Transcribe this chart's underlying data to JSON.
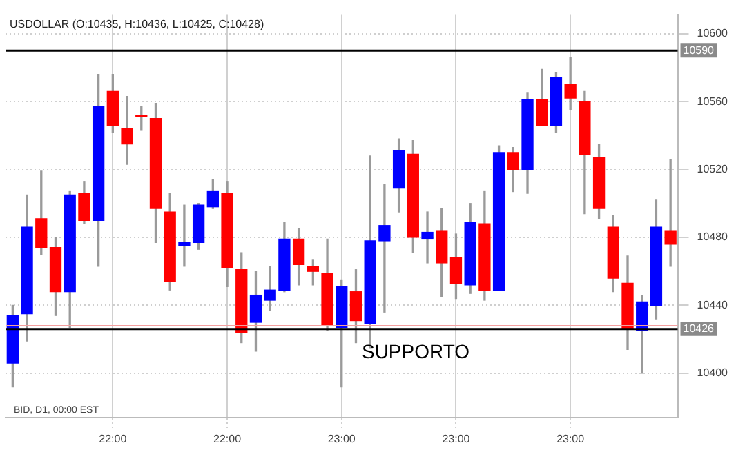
{
  "chart_data": {
    "type": "candlestick",
    "title": "USDOLLAR (O:10435, H:10436, L:10425, C:10428)",
    "annotations": [
      "BID, D1, 00:00 EST",
      {
        "text": "SUPPORTO",
        "y": 10426
      }
    ],
    "categories": [
      null,
      null,
      null,
      null,
      null,
      null,
      null,
      "22:00",
      null,
      null,
      null,
      null,
      null,
      null,
      null,
      "22:00",
      null,
      null,
      null,
      null,
      null,
      null,
      null,
      "23:00",
      null,
      null,
      null,
      null,
      null,
      null,
      null,
      "23:00",
      null,
      null,
      null,
      null,
      null,
      null,
      null,
      "23:00",
      null,
      null,
      null,
      null,
      null,
      null,
      null
    ],
    "ohlc": [
      [
        10406,
        10440,
        10392,
        10434
      ],
      [
        10435,
        10505,
        10419,
        10486
      ],
      [
        10491,
        10519,
        10470,
        10474
      ],
      [
        10474,
        10480,
        10434,
        10448
      ],
      [
        10448,
        10507,
        10427,
        10505
      ],
      [
        10506,
        10513,
        10488,
        10490
      ],
      [
        10490,
        10576,
        10463,
        10557
      ],
      [
        10566,
        10576,
        10542,
        10546
      ],
      [
        10544,
        10563,
        10523,
        10535
      ],
      [
        10552,
        10557,
        10543,
        10551
      ],
      [
        10550,
        10559,
        10477,
        10497
      ],
      [
        10495,
        10506,
        10449,
        10454
      ],
      [
        10475,
        10499,
        10463,
        10477
      ],
      [
        10477,
        10500,
        10473,
        10499
      ],
      [
        10498,
        10514,
        10497,
        10507
      ],
      [
        10506,
        10513,
        10451,
        10462
      ],
      [
        10461,
        10471,
        10418,
        10424
      ],
      [
        10430,
        10460,
        10413,
        10446
      ],
      [
        10443,
        10463,
        10437,
        10449
      ],
      [
        10449,
        10489,
        10448,
        10479
      ],
      [
        10479,
        10485,
        10452,
        10464
      ],
      [
        10463,
        10467,
        10452,
        10460
      ],
      [
        10459,
        10479,
        10425,
        10428
      ],
      [
        10427,
        10455,
        10392,
        10451
      ],
      [
        10448,
        10461,
        10418,
        10431
      ],
      [
        10429,
        10528,
        10415,
        10478
      ],
      [
        10478,
        10511,
        10436,
        10487
      ],
      [
        10509,
        10538,
        10495,
        10531
      ],
      [
        10529,
        10537,
        10471,
        10480
      ],
      [
        10479,
        10495,
        10465,
        10483
      ],
      [
        10484,
        10497,
        10445,
        10465
      ],
      [
        10468,
        10482,
        10444,
        10453
      ],
      [
        10452,
        10500,
        10447,
        10489
      ],
      [
        10488,
        10507,
        10443,
        10449
      ],
      [
        10449,
        10534,
        10449,
        10530
      ],
      [
        10530,
        10533,
        10507,
        10520
      ],
      [
        10520,
        10565,
        10506,
        10561
      ],
      [
        10561,
        10579,
        10546,
        10546
      ],
      [
        10546,
        10577,
        10542,
        10574
      ],
      [
        10570,
        10586,
        10555,
        10562
      ],
      [
        10560,
        10566,
        10494,
        10529
      ],
      [
        10527,
        10535,
        10491,
        10497
      ],
      [
        10486,
        10493,
        10448,
        10456
      ],
      [
        10453,
        10469,
        10414,
        10426
      ],
      [
        10425,
        10446,
        10400,
        10442
      ],
      [
        10440,
        10502,
        10432,
        10486
      ],
      [
        10484,
        10526,
        10463,
        10476
      ]
    ],
    "colors": [
      "#0000ff",
      "#0000ff",
      "#ff0000",
      "#ff0000",
      "#0000ff",
      "#ff0000",
      "#0000ff",
      "#ff0000",
      "#ff0000",
      "#ff0000",
      "#ff0000",
      "#ff0000",
      "#0000ff",
      "#0000ff",
      "#0000ff",
      "#ff0000",
      "#ff0000",
      "#0000ff",
      "#0000ff",
      "#0000ff",
      "#ff0000",
      "#ff0000",
      "#ff0000",
      "#0000ff",
      "#ff0000",
      "#0000ff",
      "#0000ff",
      "#0000ff",
      "#ff0000",
      "#0000ff",
      "#ff0000",
      "#ff0000",
      "#0000ff",
      "#ff0000",
      "#0000ff",
      "#ff0000",
      "#0000ff",
      "#ff0000",
      "#0000ff",
      "#ff0000",
      "#ff0000",
      "#ff0000",
      "#ff0000",
      "#ff0000",
      "#0000ff",
      "#0000ff",
      "#ff0000"
    ],
    "ylim": [
      10374,
      10611
    ],
    "yticks": [
      10400,
      10440,
      10480,
      10520,
      10560,
      10600
    ],
    "ref_lines": [
      {
        "axis": "y",
        "value": 10590,
        "label": "10590",
        "color": "#000000"
      },
      {
        "axis": "y",
        "value": 10428,
        "color": "#f4a0a0"
      },
      {
        "axis": "y",
        "value": 10426,
        "label": "10426",
        "color": "#000000"
      }
    ],
    "grid": true,
    "legend": false
  }
}
